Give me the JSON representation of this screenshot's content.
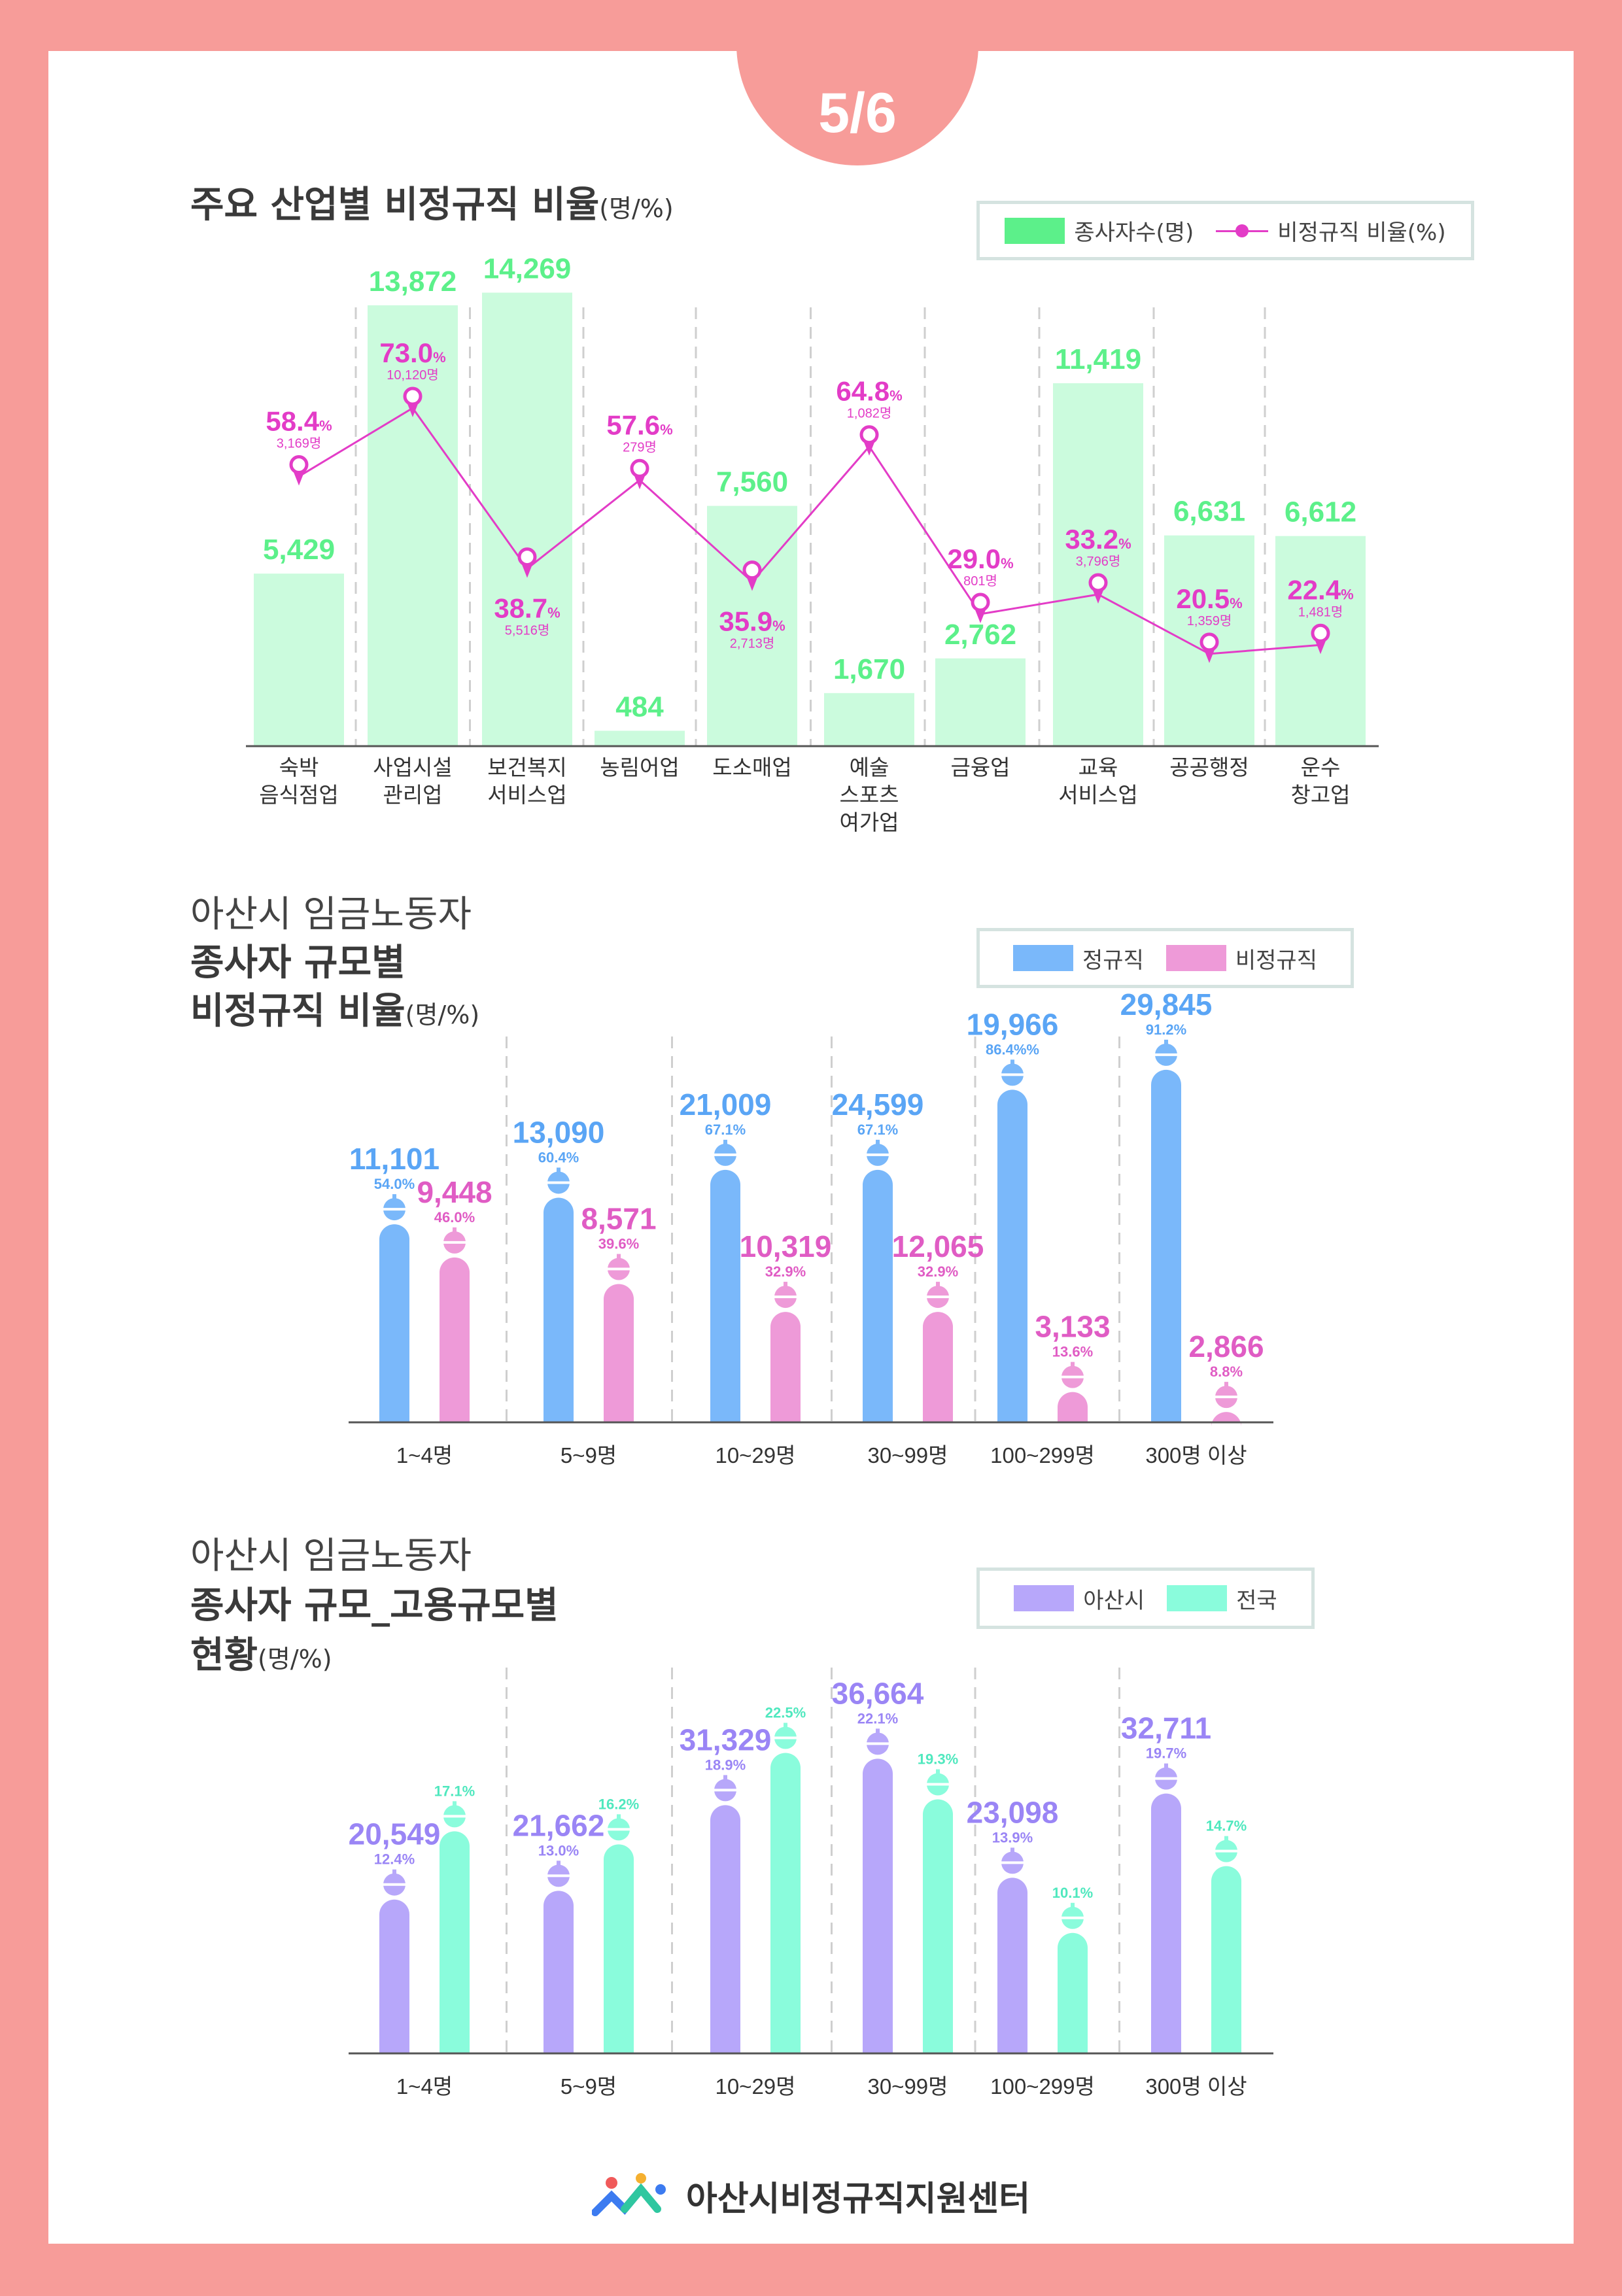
{
  "page_indicator": "5/6",
  "colors": {
    "background": "#F79C99",
    "green": "#5CF08A",
    "green_bar": "#CBFBDD",
    "magenta": "#E33CC7",
    "blue": "#7AB8FA",
    "pink": "#EE9AD8",
    "purple": "#B7A7FA",
    "mint": "#8AFCDC"
  },
  "section1": {
    "title": "주요 산업별 비정규직 비율",
    "unit": "(명/%)",
    "legend": {
      "bar": "종사자수(명)",
      "line": "비정규직 비율(%)"
    }
  },
  "section2": {
    "title_line1": "아산시 임금노동자",
    "title_line2": "종사자 규모별",
    "title_line3": "비정규직 비율",
    "unit": "(명/%)",
    "legend": {
      "a": "정규직",
      "b": "비정규직"
    }
  },
  "section3": {
    "title_line1": "아산시 임금노동자",
    "title_line2": "종사자 규모_고용규모별",
    "title_line3": "현황",
    "unit": "(명/%)",
    "legend": {
      "a": "아산시",
      "b": "전국"
    }
  },
  "footer": {
    "org_name": "아산시비정규직지원센터"
  },
  "chart_data": [
    {
      "type": "bar+line",
      "categories": [
        [
          "숙박",
          "음식점업"
        ],
        [
          "사업시설",
          "관리업"
        ],
        [
          "보건복지",
          "서비스업"
        ],
        [
          "농림어업"
        ],
        [
          "도소매업"
        ],
        [
          "예술",
          "스포츠",
          "여가업"
        ],
        [
          "금융업"
        ],
        [
          "교육",
          "서비스업"
        ],
        [
          "공공행정"
        ],
        [
          "운수",
          "창고업"
        ]
      ],
      "series": [
        {
          "name": "종사자수(명)",
          "type": "bar",
          "values": [
            5429,
            13872,
            14269,
            484,
            7560,
            1670,
            2762,
            11419,
            6631,
            6612
          ],
          "labels": [
            "5,429",
            "13,872",
            "14,269",
            "484",
            "7,560",
            "1,670",
            "2,762",
            "11,419",
            "6,631",
            "6,612"
          ]
        },
        {
          "name": "비정규직 비율(%)",
          "type": "line",
          "values": [
            58.4,
            73.0,
            38.7,
            57.6,
            35.9,
            64.8,
            29.0,
            33.2,
            20.5,
            22.4
          ],
          "labels": [
            "58.4",
            "73.0",
            "38.7",
            "57.6",
            "35.9",
            "64.8",
            "29.0",
            "33.2",
            "20.5",
            "22.4"
          ],
          "pct_suffix": "%",
          "counts": [
            "3,169명",
            "10,120명",
            "5,516명",
            "279명",
            "2,713명",
            "1,082명",
            "801명",
            "3,796명",
            "1,359명",
            "1,481명"
          ]
        }
      ],
      "grid": "vertical dashed",
      "legend": "top-right"
    },
    {
      "type": "bar",
      "categories": [
        "1~4명",
        "5~9명",
        "10~29명",
        "30~99명",
        "100~299명",
        "300명 이상"
      ],
      "series": [
        {
          "name": "정규직",
          "values": [
            11101,
            13090,
            21009,
            24599,
            19966,
            29845
          ],
          "labels": [
            "11,101",
            "13,090",
            "21,009",
            "24,599",
            "19,966",
            "29,845"
          ],
          "percents": [
            54.0,
            60.4,
            67.1,
            67.1,
            86.4,
            91.2
          ],
          "percent_labels": [
            "54.0%",
            "60.4%",
            "67.1%",
            "67.1%",
            "86.4%%",
            "91.2%"
          ]
        },
        {
          "name": "비정규직",
          "values": [
            9448,
            8571,
            10319,
            12065,
            3133,
            2866
          ],
          "labels": [
            "9,448",
            "8,571",
            "10,319",
            "12,065",
            "3,133",
            "2,866"
          ],
          "percents": [
            46.0,
            39.6,
            32.9,
            32.9,
            13.6,
            8.8
          ],
          "percent_labels": [
            "46.0%",
            "39.6%",
            "32.9%",
            "32.9%",
            "13.6%",
            "8.8%"
          ]
        }
      ],
      "grid": "vertical dashed",
      "legend": "top-right"
    },
    {
      "type": "bar",
      "categories": [
        "1~4명",
        "5~9명",
        "10~29명",
        "30~99명",
        "100~299명",
        "300명 이상"
      ],
      "series": [
        {
          "name": "아산시",
          "values": [
            20549,
            21662,
            31329,
            36664,
            23098,
            32711
          ],
          "labels": [
            "20,549",
            "21,662",
            "31,329",
            "36,664",
            "23,098",
            "32,711"
          ],
          "percents": [
            12.4,
            13.0,
            18.9,
            22.1,
            13.9,
            19.7
          ],
          "percent_labels": [
            "12.4%",
            "13.0%",
            "18.9%",
            "22.1%",
            "13.9%",
            "19.7%"
          ]
        },
        {
          "name": "전국",
          "percents": [
            17.1,
            16.2,
            22.5,
            19.3,
            10.1,
            14.7
          ],
          "percent_labels": [
            "17.1%",
            "16.2%",
            "22.5%",
            "19.3%",
            "10.1%",
            "14.7%"
          ]
        }
      ],
      "grid": "vertical dashed",
      "legend": "top-right"
    }
  ]
}
